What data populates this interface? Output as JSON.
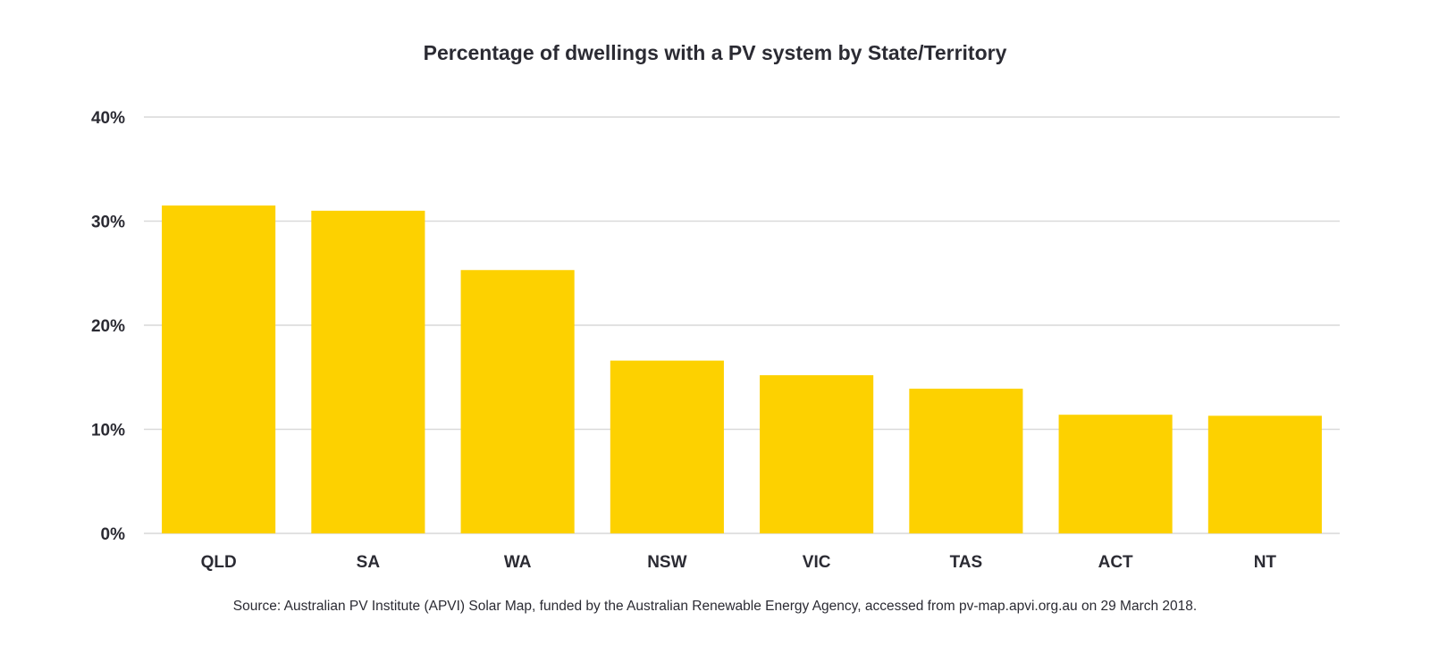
{
  "chart_data": {
    "type": "bar",
    "title": "Percentage of dwellings with a PV system by State/Territory",
    "categories": [
      "QLD",
      "SA",
      "WA",
      "NSW",
      "VIC",
      "TAS",
      "ACT",
      "NT"
    ],
    "values": [
      31.5,
      31.0,
      25.3,
      16.6,
      15.2,
      13.9,
      11.4,
      11.3
    ],
    "ylim": [
      0,
      40
    ],
    "yticks": [
      0,
      10,
      20,
      30,
      40
    ],
    "ytick_labels": [
      "0%",
      "10%",
      "20%",
      "30%",
      "40%"
    ],
    "xlabel": "",
    "ylabel": "",
    "grid": true,
    "bar_color": "#FDD100",
    "grid_color": "#d9d9d9"
  },
  "source": "Source: Australian PV Institute (APVI) Solar Map, funded by the Australian Renewable Energy Agency, accessed from pv-map.apvi.org.au on 29 March 2018."
}
